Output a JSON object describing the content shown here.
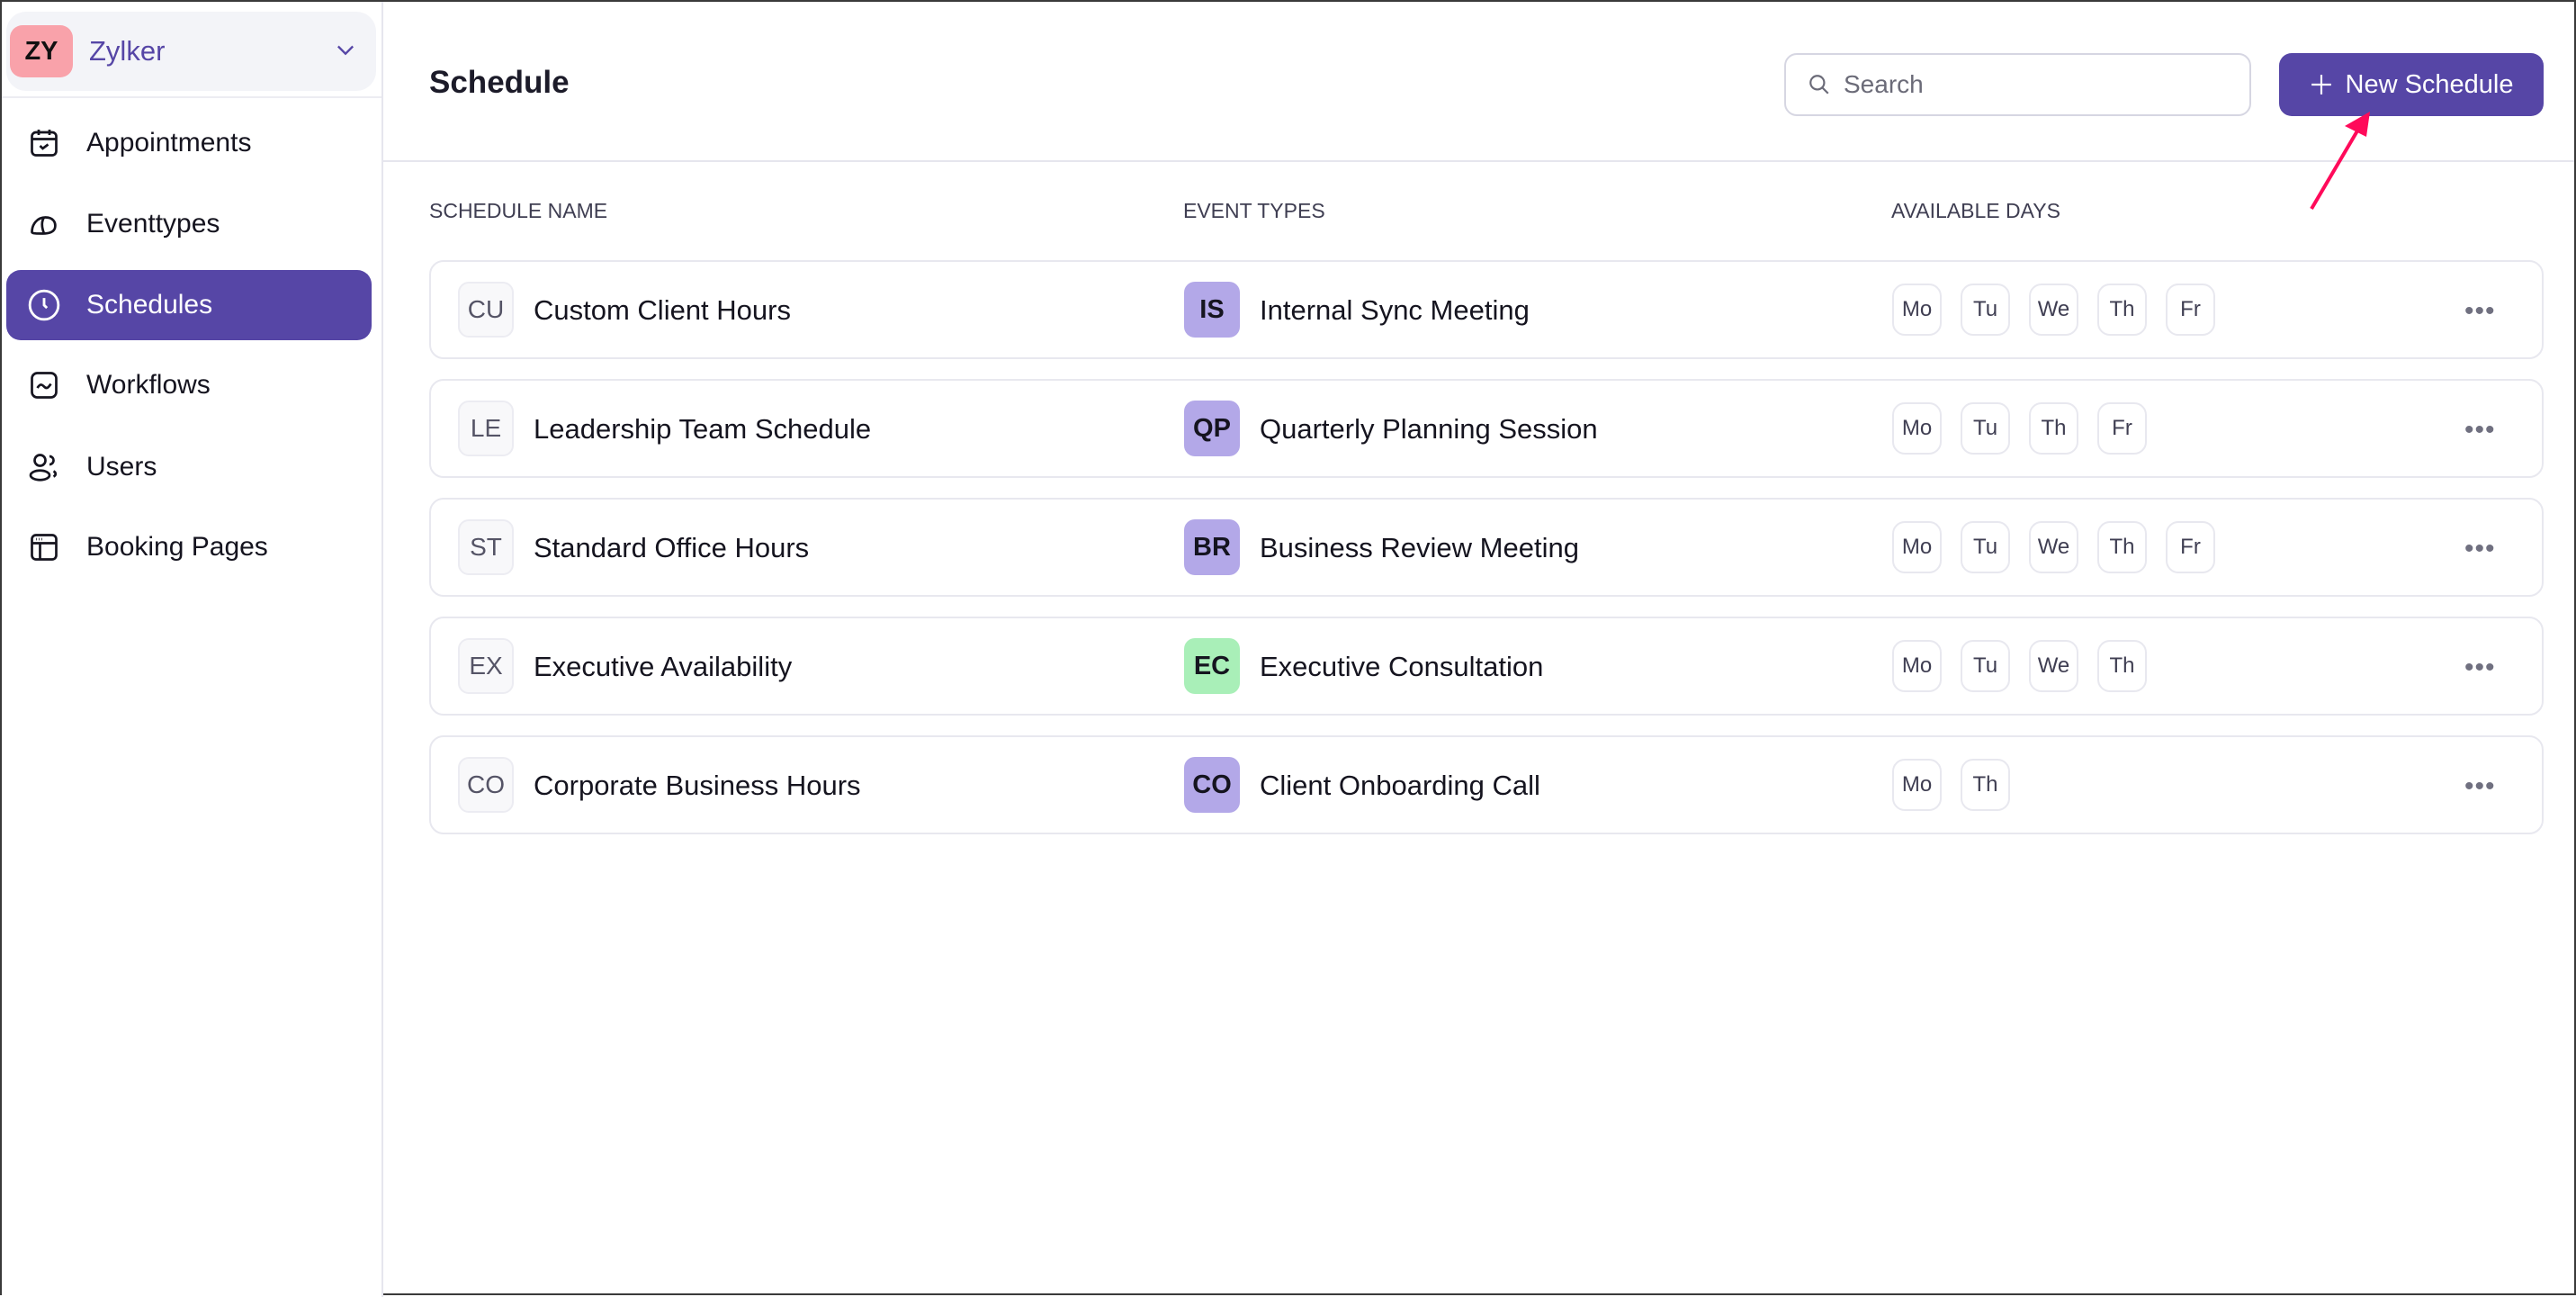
{
  "sidebar": {
    "org": {
      "initials": "ZY",
      "name": "Zylker"
    },
    "items": [
      {
        "label": "Appointments",
        "icon": "calendar-check-icon"
      },
      {
        "label": "Eventtypes",
        "icon": "cap-icon"
      },
      {
        "label": "Schedules",
        "icon": "clock-icon",
        "active": true
      },
      {
        "label": "Workflows",
        "icon": "workflow-icon"
      },
      {
        "label": "Users",
        "icon": "users-icon"
      },
      {
        "label": "Booking Pages",
        "icon": "browser-icon"
      }
    ]
  },
  "header": {
    "title": "Schedule",
    "search_placeholder": "Search",
    "new_button": "New Schedule"
  },
  "table": {
    "columns": [
      "SCHEDULE NAME",
      "EVENT TYPES",
      "AVAILABLE DAYS"
    ],
    "rows": [
      {
        "initials": "CU",
        "name": "Custom Client Hours",
        "event_initials": "IS",
        "event": "Internal Sync Meeting",
        "event_color": "#b3a8e8",
        "days": [
          "Mo",
          "Tu",
          "We",
          "Th",
          "Fr"
        ]
      },
      {
        "initials": "LE",
        "name": "Leadership Team Schedule",
        "event_initials": "QP",
        "event": "Quarterly Planning Session",
        "event_color": "#b3a8e8",
        "days": [
          "Mo",
          "Tu",
          "Th",
          "Fr"
        ]
      },
      {
        "initials": "ST",
        "name": "Standard Office Hours",
        "event_initials": "BR",
        "event": "Business Review Meeting",
        "event_color": "#b3a8e8",
        "days": [
          "Mo",
          "Tu",
          "We",
          "Th",
          "Fr"
        ]
      },
      {
        "initials": "EX",
        "name": "Executive Availability",
        "event_initials": "EC",
        "event": "Executive Consultation",
        "event_color": "#a9efb8",
        "days": [
          "Mo",
          "Tu",
          "We",
          "Th"
        ]
      },
      {
        "initials": "CO",
        "name": "Corporate Business Hours",
        "event_initials": "CO",
        "event": "Client Onboarding Call",
        "event_color": "#b3a8e8",
        "days": [
          "Mo",
          "Th"
        ]
      }
    ]
  },
  "colors": {
    "accent": "#5646a6",
    "annotation_arrow": "#ff0a5a"
  }
}
